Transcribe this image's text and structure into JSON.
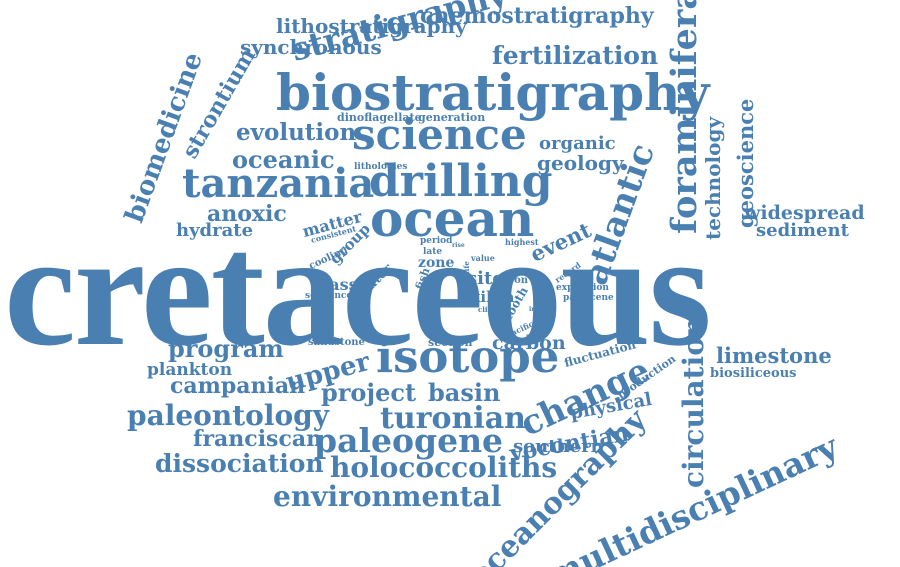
{
  "words": {
    "cretaceous": "cretaceous",
    "biostratigraphy": "biostratigraphy",
    "science": "science",
    "tanzania": "tanzania",
    "drilling": "drilling",
    "ocean": "ocean",
    "isotope": "isotope",
    "foraminifera": "foraminifera",
    "multidisciplinary": "multidisciplinary",
    "oceanography": "oceanography",
    "circulation": "circulation",
    "environmental": "environmental",
    "holococcoliths": "holococcoliths",
    "paleogene": "paleogene",
    "turonian": "turonian",
    "stratigraphy": "stratigraphy",
    "lithostratigraphy": "lithostratigraphy",
    "chemostratigraphy": "chemostratigraphy",
    "synchronous": "synchronous",
    "fertilization": "fertilization",
    "biomedicine": "biomedicine",
    "strontium": "strontium",
    "evolution": "evolution",
    "oceanic": "oceanic",
    "dinoflagellate": "dinoflagellate",
    "generation": "generation",
    "organic": "organic",
    "geology": "geology",
    "atlantic": "atlantic",
    "technology": "technology",
    "geoscience": "geoscience",
    "widespread": "widespread",
    "sediment": "sediment",
    "anoxic": "anoxic",
    "hydrate": "hydrate",
    "matter": "matter",
    "group": "group",
    "event": "event",
    "lithologies": "lithologies",
    "consistent": "consistent",
    "cooling": "cooling",
    "period": "period",
    "late": "late",
    "rise": "rise",
    "highest": "highest",
    "glassy": "glassy",
    "sequence": "sequence",
    "water": "water",
    "zone": "zone",
    "fish": "fish",
    "value": "value",
    "life": "life",
    "site": "site",
    "iron": "iron",
    "kilwa": "kilwa",
    "tooth": "tooth",
    "record": "record",
    "expedition": "expedition",
    "paleocene": "paleocene",
    "climatic": "climatic",
    "pacific": "pacific",
    "indian": "indian",
    "sandstone": "sandstone",
    "section": "section",
    "carbon": "carbon",
    "program": "program",
    "upper": "upper",
    "plankton": "plankton",
    "campanian": "campanian",
    "project": "project",
    "basin": "basin",
    "change": "change",
    "fluctuation": "fluctuation",
    "production": "production",
    "physical": "physical",
    "limestone": "limestone",
    "biosiliceous": "biosiliceous",
    "paleontology": "paleontology",
    "vocontian": "vocontian",
    "southern": "southern",
    "franciscan": "franciscan",
    "dissociation": "dissociation"
  },
  "colors": {
    "word": "#4a7fb1",
    "background": "#ffffff"
  }
}
